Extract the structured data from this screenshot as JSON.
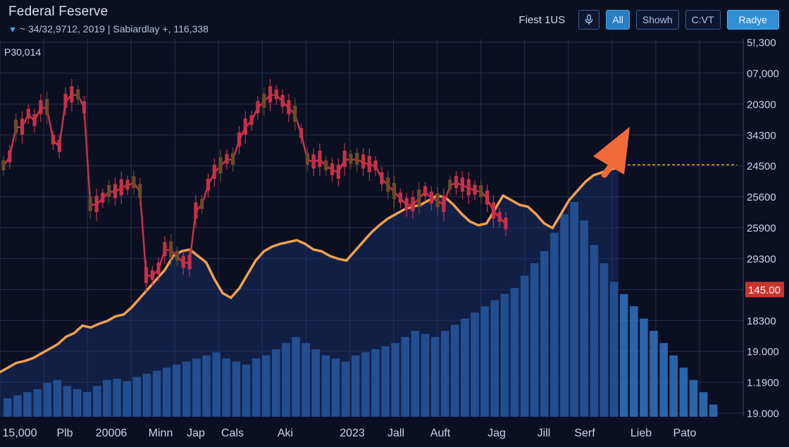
{
  "header": {
    "title": "Federal Feserve",
    "subtitle": "~ 34/32,9712, 2019 | Sabiardlay +, 116,338",
    "price_label": "P30,014"
  },
  "toolbar": {
    "label": "Fiest 1US",
    "mic_icon": "microphone-icon",
    "btn_all": "All",
    "btn_showh": "Showh",
    "btn_cvt": "C:VT",
    "btn_radye": "Radye"
  },
  "colors": {
    "background": "#0a0f22",
    "grid": "#26304d",
    "candle_up": "#c83048",
    "candle_alt": "#6b4a2a",
    "line": "#f0a050",
    "volume": "#2f6fb8",
    "arrow": "#f26a3a",
    "target_line": "#e0a020",
    "price_badge": "#c8342c"
  },
  "chart_data": {
    "type": "line",
    "title": "Federal Feserve",
    "x_tick_labels": [
      "15,000",
      "Plb",
      "20006",
      "Minn",
      "Jap",
      "Cals",
      "Aki",
      "2023",
      "Jall",
      "Auft",
      "Jag",
      "Jill",
      "Serf",
      "Lieb",
      "Pato"
    ],
    "y_tick_labels": [
      "5!,300",
      "07,000",
      "20300",
      "34300",
      "24500",
      "25600",
      "25900",
      "29300",
      "145.00",
      "18300",
      "19.000",
      "1.1900",
      "19.000"
    ],
    "highlighted_price": "145.00",
    "series": [
      {
        "kind": "candlestick",
        "description_color": "red",
        "values": [
          195,
          202,
          225,
          225,
          235,
          230,
          240,
          240,
          215,
          210,
          245,
          250,
          250,
          240,
          165,
          165,
          170,
          175,
          175,
          178,
          180,
          182,
          175,
          110,
          110,
          115,
          130,
          130,
          125,
          120,
          120,
          160,
          165,
          180,
          190,
          195,
          200,
          200,
          215,
          225,
          230,
          240,
          245,
          250,
          250,
          245,
          240,
          235,
          220,
          200,
          198,
          200,
          195,
          192,
          190,
          200,
          200,
          200,
          198,
          196,
          195,
          185,
          180,
          175,
          170,
          165,
          165,
          170,
          175,
          170,
          168,
          165,
          180,
          182,
          180,
          178,
          176,
          175,
          170,
          160,
          155,
          150
        ]
      },
      {
        "kind": "line",
        "description_color": "orange",
        "values": [
          20,
          25,
          30,
          32,
          35,
          40,
          45,
          50,
          58,
          62,
          70,
          68,
          72,
          75,
          80,
          82,
          90,
          100,
          110,
          120,
          130,
          145,
          150,
          152,
          145,
          138,
          120,
          105,
          100,
          110,
          125,
          140,
          150,
          155,
          158,
          160,
          162,
          158,
          152,
          150,
          145,
          142,
          140,
          150,
          160,
          170,
          178,
          185,
          190,
          195,
          198,
          200,
          205,
          210,
          208,
          200,
          190,
          182,
          178,
          180,
          195,
          210,
          205,
          200,
          198,
          190,
          180,
          175,
          190,
          205,
          215,
          225,
          232,
          235,
          238,
          240
        ]
      },
      {
        "kind": "volume",
        "description_color": "blue",
        "values": [
          30,
          35,
          40,
          45,
          55,
          60,
          50,
          45,
          40,
          50,
          60,
          62,
          58,
          65,
          70,
          75,
          80,
          85,
          90,
          95,
          100,
          105,
          95,
          90,
          85,
          95,
          100,
          110,
          120,
          130,
          120,
          110,
          100,
          95,
          90,
          100,
          105,
          110,
          115,
          120,
          130,
          140,
          135,
          130,
          140,
          150,
          160,
          170,
          180,
          190,
          200,
          210,
          230,
          250,
          270,
          300,
          330,
          350,
          320,
          280,
          250,
          220,
          200,
          180,
          160,
          140,
          120,
          100,
          80,
          60,
          40,
          20
        ]
      }
    ],
    "annotations": {
      "arrow": "up-right",
      "target_line": "dashed"
    },
    "grid": true
  }
}
